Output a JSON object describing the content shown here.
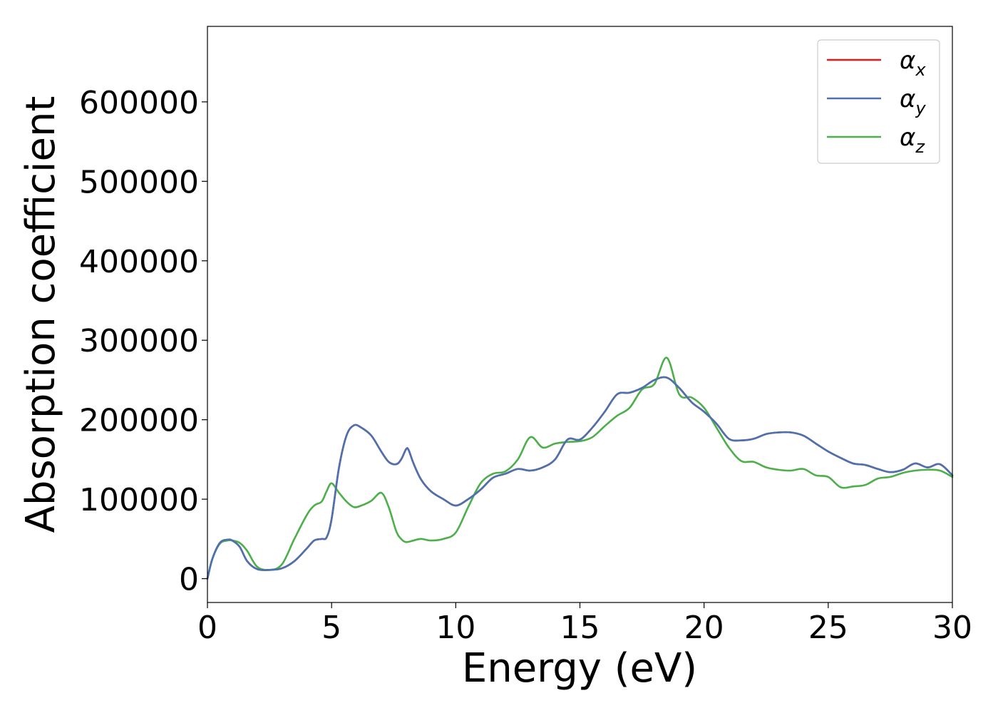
{
  "chart_data": {
    "type": "line",
    "title": "",
    "xlabel": "Energy (eV)",
    "ylabel": "Absorption coefficient",
    "xlim": [
      0,
      30
    ],
    "ylim": [
      -30000,
      695000
    ],
    "xticks": [
      0,
      5,
      10,
      15,
      20,
      25,
      30
    ],
    "yticks": [
      0,
      100000,
      200000,
      300000,
      400000,
      500000,
      600000
    ],
    "xtick_labels": [
      "0",
      "5",
      "10",
      "15",
      "20",
      "25",
      "30"
    ],
    "ytick_labels": [
      "0",
      "100000",
      "200000",
      "300000",
      "400000",
      "500000",
      "600000"
    ],
    "grid": false,
    "legend_position": "top-right",
    "colors": {
      "alpha_x": "#e41a1c",
      "alpha_y": "#4a72b0",
      "alpha_z": "#4daf4a"
    },
    "series": [
      {
        "name": "α_x",
        "label_main": "α",
        "label_sub": "x",
        "color": "#e41a1c",
        "x": [
          0,
          0.2,
          0.5,
          0.8,
          1.0,
          1.3,
          1.6,
          2.0,
          2.5,
          3.0,
          3.5,
          4.0,
          4.3,
          4.6,
          4.8,
          5.0,
          5.3,
          5.6,
          5.9,
          6.2,
          6.6,
          7.0,
          7.3,
          7.6,
          7.8,
          8.0,
          8.1,
          8.3,
          8.6,
          9.0,
          9.5,
          10.0,
          10.5,
          11.0,
          11.5,
          12.0,
          12.5,
          13.0,
          13.5,
          14.0,
          14.5,
          15.0,
          15.5,
          16.0,
          16.5,
          17.0,
          17.5,
          18.0,
          18.5,
          19.0,
          19.5,
          20.0,
          20.5,
          21.0,
          21.5,
          22.0,
          22.5,
          23.0,
          23.5,
          24.0,
          24.5,
          25.0,
          25.5,
          26.0,
          26.5,
          27.0,
          27.5,
          28.0,
          28.5,
          29.0,
          29.5,
          30.0
        ],
        "values": [
          0,
          25000,
          45000,
          49000,
          48000,
          40000,
          22000,
          12000,
          11000,
          13000,
          22000,
          38000,
          48000,
          50000,
          52000,
          75000,
          140000,
          180000,
          193000,
          190000,
          180000,
          160000,
          147000,
          144000,
          150000,
          163000,
          162000,
          145000,
          125000,
          110000,
          100000,
          92000,
          100000,
          112000,
          127000,
          132000,
          138000,
          136000,
          140000,
          150000,
          175000,
          175000,
          190000,
          210000,
          232000,
          234000,
          240000,
          250000,
          253000,
          240000,
          222000,
          210000,
          195000,
          176000,
          174000,
          176000,
          182000,
          184000,
          184000,
          180000,
          170000,
          160000,
          152000,
          145000,
          143000,
          138000,
          134000,
          137000,
          145000,
          140000,
          144000,
          130000
        ]
      },
      {
        "name": "α_y",
        "label_main": "α",
        "label_sub": "y",
        "color": "#4a72b0",
        "x": [
          0,
          0.2,
          0.5,
          0.8,
          1.0,
          1.3,
          1.6,
          2.0,
          2.5,
          3.0,
          3.5,
          4.0,
          4.3,
          4.6,
          4.8,
          5.0,
          5.3,
          5.6,
          5.9,
          6.2,
          6.6,
          7.0,
          7.3,
          7.6,
          7.8,
          8.0,
          8.1,
          8.3,
          8.6,
          9.0,
          9.5,
          10.0,
          10.5,
          11.0,
          11.5,
          12.0,
          12.5,
          13.0,
          13.5,
          14.0,
          14.5,
          15.0,
          15.5,
          16.0,
          16.5,
          17.0,
          17.5,
          18.0,
          18.5,
          19.0,
          19.5,
          20.0,
          20.5,
          21.0,
          21.5,
          22.0,
          22.5,
          23.0,
          23.5,
          24.0,
          24.5,
          25.0,
          25.5,
          26.0,
          26.5,
          27.0,
          27.5,
          28.0,
          28.5,
          29.0,
          29.5,
          30.0
        ],
        "values": [
          0,
          25000,
          45000,
          49000,
          48000,
          40000,
          22000,
          12000,
          11000,
          13000,
          22000,
          38000,
          48000,
          50000,
          52000,
          75000,
          140000,
          180000,
          193000,
          190000,
          180000,
          160000,
          147000,
          144000,
          150000,
          163000,
          162000,
          145000,
          125000,
          110000,
          100000,
          92000,
          100000,
          112000,
          127000,
          132000,
          138000,
          136000,
          140000,
          150000,
          175000,
          175000,
          190000,
          210000,
          232000,
          234000,
          240000,
          250000,
          253000,
          240000,
          222000,
          210000,
          195000,
          176000,
          174000,
          176000,
          182000,
          184000,
          184000,
          180000,
          170000,
          160000,
          152000,
          145000,
          143000,
          138000,
          134000,
          137000,
          145000,
          140000,
          144000,
          130000
        ]
      },
      {
        "name": "α_z",
        "label_main": "α",
        "label_sub": "z",
        "color": "#4daf4a",
        "x": [
          0,
          0.2,
          0.5,
          0.8,
          1.0,
          1.3,
          1.6,
          2.0,
          2.5,
          3.0,
          3.5,
          4.0,
          4.3,
          4.6,
          4.8,
          5.0,
          5.3,
          5.6,
          5.9,
          6.2,
          6.6,
          7.0,
          7.3,
          7.6,
          7.8,
          8.0,
          8.3,
          8.6,
          9.0,
          9.5,
          10.0,
          10.5,
          11.0,
          11.5,
          12.0,
          12.5,
          13.0,
          13.5,
          14.0,
          14.5,
          15.0,
          15.5,
          16.0,
          16.5,
          17.0,
          17.5,
          18.0,
          18.5,
          19.0,
          19.5,
          20.0,
          20.5,
          21.0,
          21.5,
          22.0,
          22.5,
          23.0,
          23.5,
          24.0,
          24.5,
          25.0,
          25.5,
          26.0,
          26.5,
          27.0,
          27.5,
          28.0,
          28.5,
          29.0,
          29.5,
          30.0
        ],
        "values": [
          0,
          25000,
          44000,
          48000,
          48000,
          45000,
          35000,
          15000,
          11000,
          18000,
          50000,
          80000,
          92000,
          97000,
          110000,
          120000,
          108000,
          97000,
          90000,
          92000,
          98000,
          108000,
          90000,
          60000,
          50000,
          46000,
          48000,
          50000,
          48000,
          50000,
          58000,
          90000,
          120000,
          132000,
          135000,
          150000,
          178000,
          165000,
          170000,
          172000,
          173000,
          178000,
          192000,
          205000,
          215000,
          238000,
          245000,
          278000,
          232000,
          228000,
          215000,
          190000,
          165000,
          148000,
          147000,
          140000,
          137000,
          136000,
          138000,
          130000,
          128000,
          115000,
          116000,
          118000,
          126000,
          128000,
          133000,
          136000,
          137000,
          136000,
          128000
        ]
      }
    ]
  }
}
